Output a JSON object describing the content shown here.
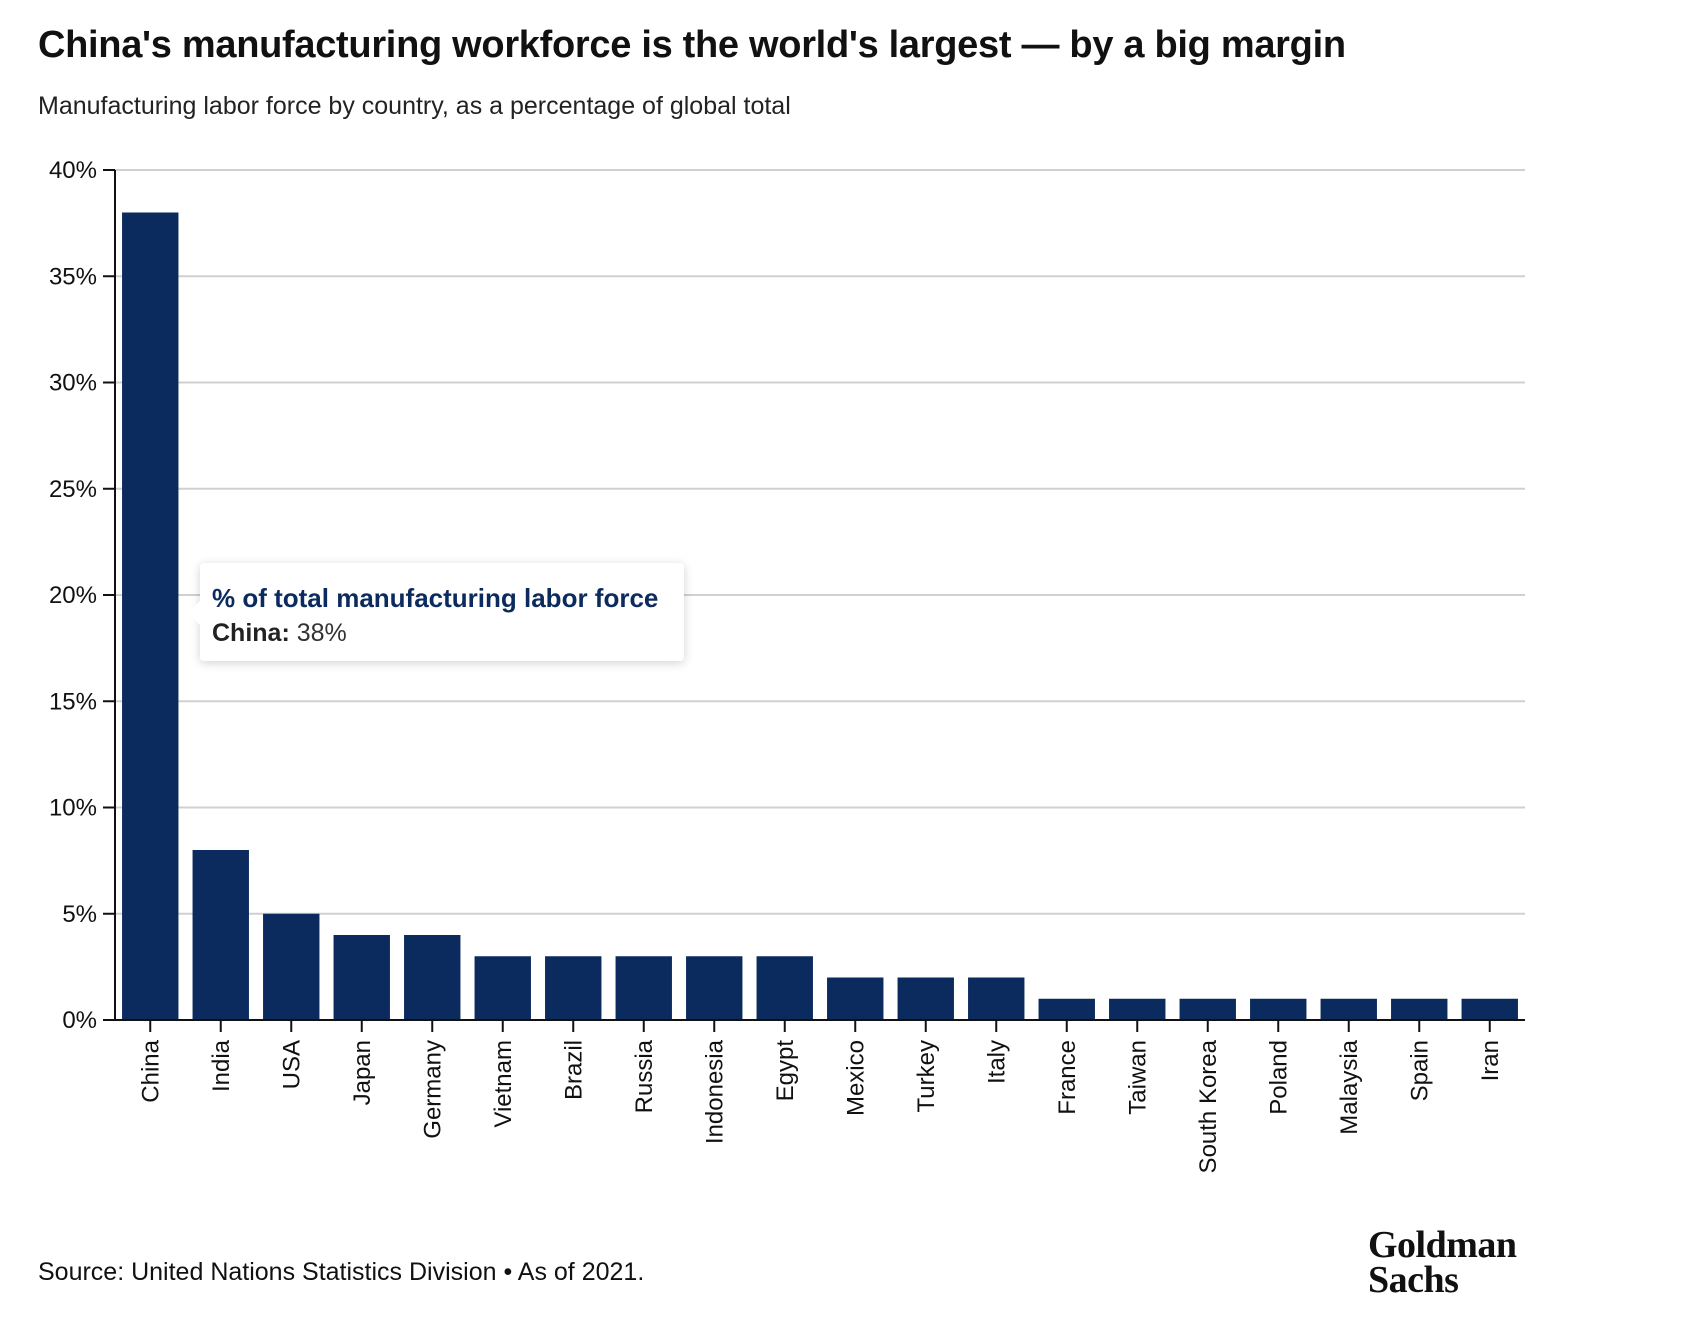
{
  "header": {
    "title": "China's manufacturing workforce is the world's largest — by a big margin",
    "subtitle": "Manufacturing labor force by country, as a percentage of global total"
  },
  "tooltip": {
    "title": "% of total manufacturing labor force",
    "country": "China:",
    "value": "38%"
  },
  "footer": {
    "source": "Source: United Nations Statistics Division • As of 2021."
  },
  "logo": {
    "line1": "Goldman",
    "line2": "Sachs"
  },
  "colors": {
    "bar": "#0b2a5e",
    "grid": "#d0d0d0",
    "axis": "#111111"
  },
  "chart_data": {
    "type": "bar",
    "categories": [
      "China",
      "India",
      "USA",
      "Japan",
      "Germany",
      "Vietnam",
      "Brazil",
      "Russia",
      "Indonesia",
      "Egypt",
      "Mexico",
      "Turkey",
      "Italy",
      "France",
      "Taiwan",
      "South Korea",
      "Poland",
      "Malaysia",
      "Spain",
      "Iran"
    ],
    "values": [
      38,
      8,
      5,
      4,
      4,
      3,
      3,
      3,
      3,
      3,
      2,
      2,
      2,
      1,
      1,
      1,
      1,
      1,
      1,
      1
    ],
    "ylim": [
      0,
      40
    ],
    "yticks": [
      0,
      5,
      10,
      15,
      20,
      25,
      30,
      35,
      40
    ],
    "ytick_labels": [
      "0%",
      "5%",
      "10%",
      "15%",
      "20%",
      "25%",
      "30%",
      "35%",
      "40%"
    ],
    "grid": true,
    "legend": "none"
  }
}
